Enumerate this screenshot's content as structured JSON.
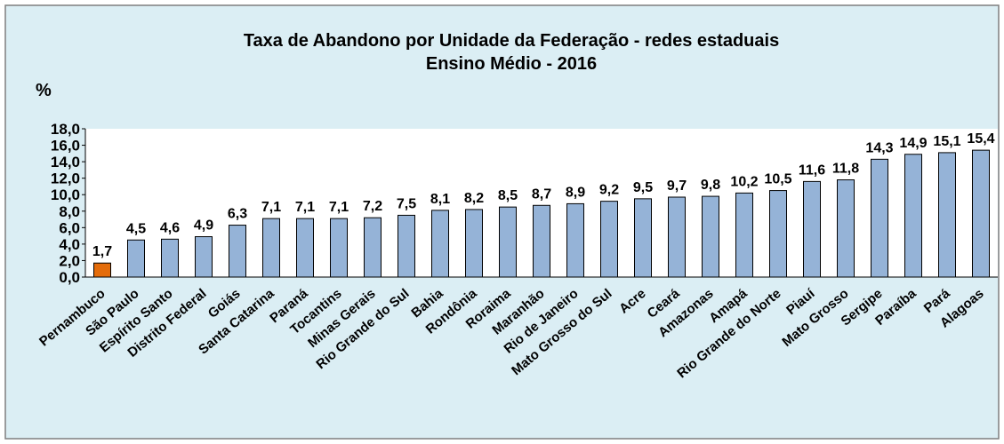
{
  "chart_data": {
    "type": "bar",
    "title": "Taxa de Abandono por Unidade da Federação - redes estaduais",
    "subtitle": "Ensino Médio - 2016",
    "y_label": "%",
    "categories": [
      "Pernambuco",
      "São Paulo",
      "Espírito Santo",
      "Distrito Federal",
      "Goiás",
      "Santa Catarina",
      "Paraná",
      "Tocantins",
      "Minas Gerais",
      "Rio Grande do Sul",
      "Bahia",
      "Rondônia",
      "Roraima",
      "Maranhão",
      "Rio de Janeiro",
      "Mato Grosso do Sul",
      "Acre",
      "Ceará",
      "Amazonas",
      "Amapá",
      "Rio Grande do Norte",
      "Piauí",
      "Mato Grosso",
      "Sergipe",
      "Paraíba",
      "Pará",
      "Alagoas"
    ],
    "values": [
      1.7,
      4.5,
      4.6,
      4.9,
      6.3,
      7.1,
      7.1,
      7.1,
      7.2,
      7.5,
      8.1,
      8.2,
      8.5,
      8.7,
      8.9,
      9.2,
      9.5,
      9.7,
      9.8,
      10.2,
      10.5,
      11.6,
      11.8,
      14.3,
      14.9,
      15.1,
      15.4
    ],
    "value_labels": [
      "1,7",
      "4,5",
      "4,6",
      "4,9",
      "6,3",
      "7,1",
      "7,1",
      "7,1",
      "7,2",
      "7,5",
      "8,1",
      "8,2",
      "8,5",
      "8,7",
      "8,9",
      "9,2",
      "9,5",
      "9,7",
      "9,8",
      "10,2",
      "10,5",
      "11,6",
      "11,8",
      "14,3",
      "14,9",
      "15,1",
      "15,4"
    ],
    "colors": [
      "#e46c0a",
      "#95b3d7",
      "#95b3d7",
      "#95b3d7",
      "#95b3d7",
      "#95b3d7",
      "#95b3d7",
      "#95b3d7",
      "#95b3d7",
      "#95b3d7",
      "#95b3d7",
      "#95b3d7",
      "#95b3d7",
      "#95b3d7",
      "#95b3d7",
      "#95b3d7",
      "#95b3d7",
      "#95b3d7",
      "#95b3d7",
      "#95b3d7",
      "#95b3d7",
      "#95b3d7",
      "#95b3d7",
      "#95b3d7",
      "#95b3d7",
      "#95b3d7",
      "#95b3d7"
    ],
    "ylim": [
      0,
      18
    ],
    "yticks": [
      {
        "value": 0,
        "label": "0,0"
      },
      {
        "value": 2,
        "label": "2,0"
      },
      {
        "value": 4,
        "label": "4,0"
      },
      {
        "value": 6,
        "label": "6,0"
      },
      {
        "value": 8,
        "label": "8,0"
      },
      {
        "value": 10,
        "label": "10,0"
      },
      {
        "value": 12,
        "label": "12,0"
      },
      {
        "value": 14,
        "label": "14,0"
      },
      {
        "value": 16,
        "label": "16,0"
      },
      {
        "value": 18,
        "label": "18,0"
      }
    ]
  }
}
